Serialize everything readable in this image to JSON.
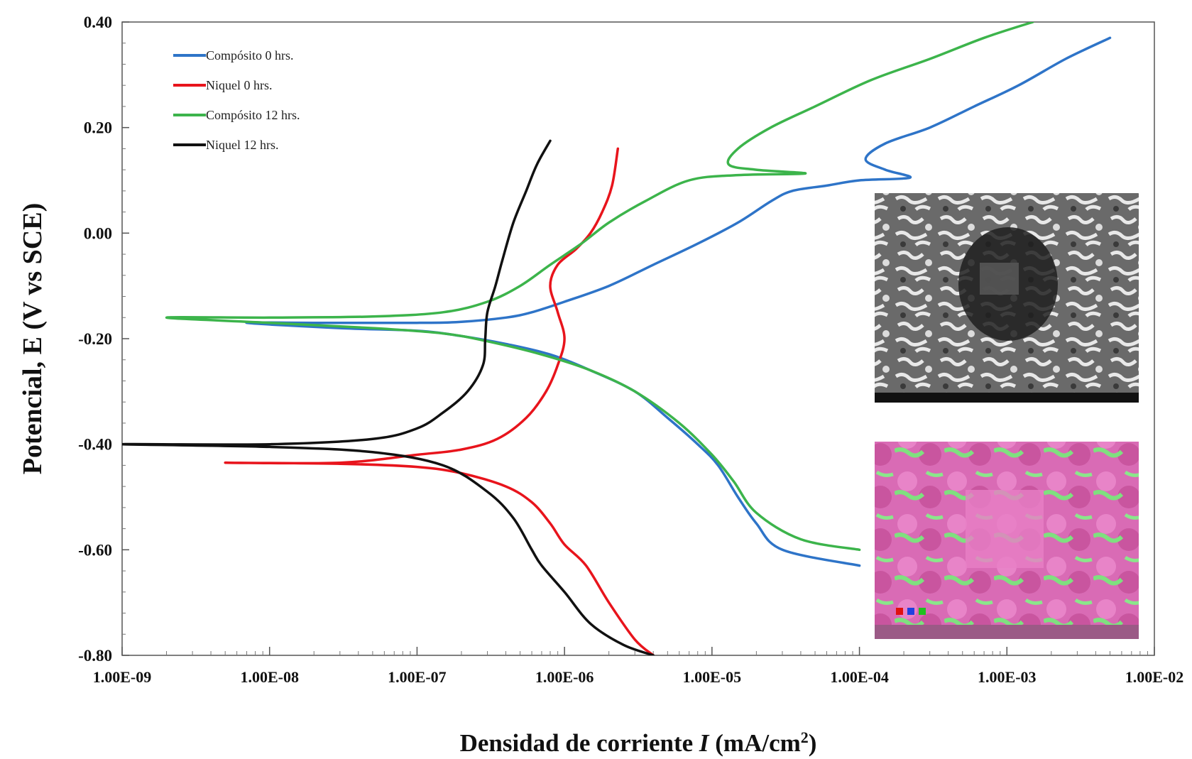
{
  "chart_data": {
    "type": "line",
    "xscale": "log",
    "xlim": [
      1e-09,
      0.01
    ],
    "ylim": [
      -0.8,
      0.4
    ],
    "xlabel": {
      "main": "Densidad de corriente ",
      "var": "I",
      "unit": " (mA/cm",
      "sup": "2",
      "close": ")"
    },
    "ylabel": "Potencial, E (V vs SCE)",
    "x_ticks": [
      1e-09,
      1e-08,
      1e-07,
      1e-06,
      1e-05,
      0.0001,
      0.001,
      0.01
    ],
    "x_tick_labels": [
      "1.00E-09",
      "1.00E-08",
      "1.00E-07",
      "1.00E-06",
      "1.00E-05",
      "1.00E-04",
      "1.00E-03",
      "1.00E-02"
    ],
    "y_ticks": [
      0.4,
      0.2,
      0.0,
      -0.2,
      -0.4,
      -0.6,
      -0.8
    ],
    "y_tick_labels": [
      "0.40",
      "0.20",
      "0.00",
      "-0.20",
      "-0.40",
      "-0.60",
      "-0.80"
    ],
    "legend_position": "top-left",
    "grid": false,
    "series": [
      {
        "name": "Compósito 0 hrs.",
        "color": "#2e74c8",
        "points": [
          [
            0.0001,
            -0.63
          ],
          [
            3e-05,
            -0.6
          ],
          [
            2e-05,
            -0.55
          ],
          [
            1.5e-05,
            -0.5
          ],
          [
            1.1e-05,
            -0.44
          ],
          [
            8e-06,
            -0.4
          ],
          [
            5e-06,
            -0.35
          ],
          [
            3e-06,
            -0.3
          ],
          [
            1.5e-06,
            -0.26
          ],
          [
            8e-07,
            -0.23
          ],
          [
            4e-07,
            -0.21
          ],
          [
            2e-07,
            -0.195
          ],
          [
            1e-07,
            -0.185
          ],
          [
            3e-08,
            -0.18
          ],
          [
            7e-09,
            -0.17
          ],
          [
            2e-08,
            -0.17
          ],
          [
            1e-07,
            -0.17
          ],
          [
            2e-07,
            -0.168
          ],
          [
            4e-07,
            -0.16
          ],
          [
            6e-07,
            -0.15
          ],
          [
            1e-06,
            -0.13
          ],
          [
            2e-06,
            -0.1
          ],
          [
            4e-06,
            -0.06
          ],
          [
            8e-06,
            -0.02
          ],
          [
            1.5e-05,
            0.02
          ],
          [
            2.5e-05,
            0.06
          ],
          [
            3.5e-05,
            0.08
          ],
          [
            6e-05,
            0.09
          ],
          [
            0.0001,
            0.1
          ],
          [
            0.00022,
            0.105
          ],
          [
            0.00015,
            0.12
          ],
          [
            0.00011,
            0.14
          ],
          [
            0.00015,
            0.17
          ],
          [
            0.0003,
            0.2
          ],
          [
            0.0006,
            0.24
          ],
          [
            0.0012,
            0.28
          ],
          [
            0.0025,
            0.33
          ],
          [
            0.005,
            0.37
          ]
        ]
      },
      {
        "name": "Niquel 0 hrs.",
        "color": "#e8141c",
        "points": [
          [
            4e-06,
            -0.8
          ],
          [
            3e-06,
            -0.77
          ],
          [
            2e-06,
            -0.7
          ],
          [
            1.4e-06,
            -0.63
          ],
          [
            1e-06,
            -0.59
          ],
          [
            8e-07,
            -0.55
          ],
          [
            6e-07,
            -0.51
          ],
          [
            4e-07,
            -0.48
          ],
          [
            2e-07,
            -0.455
          ],
          [
            1e-07,
            -0.443
          ],
          [
            3e-08,
            -0.437
          ],
          [
            5e-09,
            -0.435
          ],
          [
            3e-08,
            -0.435
          ],
          [
            1e-07,
            -0.42
          ],
          [
            2e-07,
            -0.41
          ],
          [
            3.5e-07,
            -0.39
          ],
          [
            5.5e-07,
            -0.35
          ],
          [
            7.5e-07,
            -0.3
          ],
          [
            9e-07,
            -0.25
          ],
          [
            1e-06,
            -0.2
          ],
          [
            9e-07,
            -0.15
          ],
          [
            8e-07,
            -0.1
          ],
          [
            9e-07,
            -0.06
          ],
          [
            1.2e-06,
            -0.03
          ],
          [
            1.5e-06,
            0.0
          ],
          [
            1.8e-06,
            0.04
          ],
          [
            2.1e-06,
            0.09
          ],
          [
            2.3e-06,
            0.16
          ]
        ]
      },
      {
        "name": "Compósito 12 hrs.",
        "color": "#3cb44b",
        "points": [
          [
            0.0001,
            -0.6
          ],
          [
            4e-05,
            -0.58
          ],
          [
            2e-05,
            -0.53
          ],
          [
            1.4e-05,
            -0.47
          ],
          [
            1e-05,
            -0.42
          ],
          [
            6e-06,
            -0.36
          ],
          [
            3e-06,
            -0.3
          ],
          [
            1.5e-06,
            -0.26
          ],
          [
            7e-07,
            -0.23
          ],
          [
            3e-07,
            -0.205
          ],
          [
            1.5e-07,
            -0.19
          ],
          [
            5e-08,
            -0.18
          ],
          [
            1e-08,
            -0.17
          ],
          [
            2e-09,
            -0.16
          ],
          [
            1e-08,
            -0.16
          ],
          [
            5e-08,
            -0.158
          ],
          [
            1.5e-07,
            -0.15
          ],
          [
            3e-07,
            -0.13
          ],
          [
            5e-07,
            -0.1
          ],
          [
            8e-07,
            -0.06
          ],
          [
            1.3e-06,
            -0.02
          ],
          [
            2e-06,
            0.02
          ],
          [
            3.5e-06,
            0.06
          ],
          [
            7e-06,
            0.1
          ],
          [
            1.5e-05,
            0.11
          ],
          [
            4.3e-05,
            0.113
          ],
          [
            2e-05,
            0.12
          ],
          [
            1.3e-05,
            0.13
          ],
          [
            1.5e-05,
            0.16
          ],
          [
            2.5e-05,
            0.2
          ],
          [
            5e-05,
            0.24
          ],
          [
            0.00012,
            0.29
          ],
          [
            0.0003,
            0.33
          ],
          [
            0.0007,
            0.37
          ],
          [
            0.0015,
            0.4
          ]
        ]
      },
      {
        "name": "Niquel 12 hrs.",
        "color": "#111111",
        "points": [
          [
            4e-06,
            -0.8
          ],
          [
            2.5e-06,
            -0.78
          ],
          [
            1.5e-06,
            -0.74
          ],
          [
            1e-06,
            -0.68
          ],
          [
            7e-07,
            -0.63
          ],
          [
            6e-07,
            -0.6
          ],
          [
            4.5e-07,
            -0.54
          ],
          [
            3e-07,
            -0.49
          ],
          [
            1.5e-07,
            -0.44
          ],
          [
            5e-08,
            -0.415
          ],
          [
            1e-08,
            -0.405
          ],
          [
            1e-09,
            -0.4
          ],
          [
            1e-08,
            -0.4
          ],
          [
            5e-08,
            -0.39
          ],
          [
            1e-07,
            -0.37
          ],
          [
            1.5e-07,
            -0.34
          ],
          [
            2.2e-07,
            -0.3
          ],
          [
            2.8e-07,
            -0.25
          ],
          [
            2.9e-07,
            -0.2
          ],
          [
            3e-07,
            -0.15
          ],
          [
            3.4e-07,
            -0.1
          ],
          [
            3.8e-07,
            -0.05
          ],
          [
            4.5e-07,
            0.02
          ],
          [
            5.5e-07,
            0.08
          ],
          [
            6.5e-07,
            0.13
          ],
          [
            8e-07,
            0.175
          ]
        ]
      }
    ]
  }
}
